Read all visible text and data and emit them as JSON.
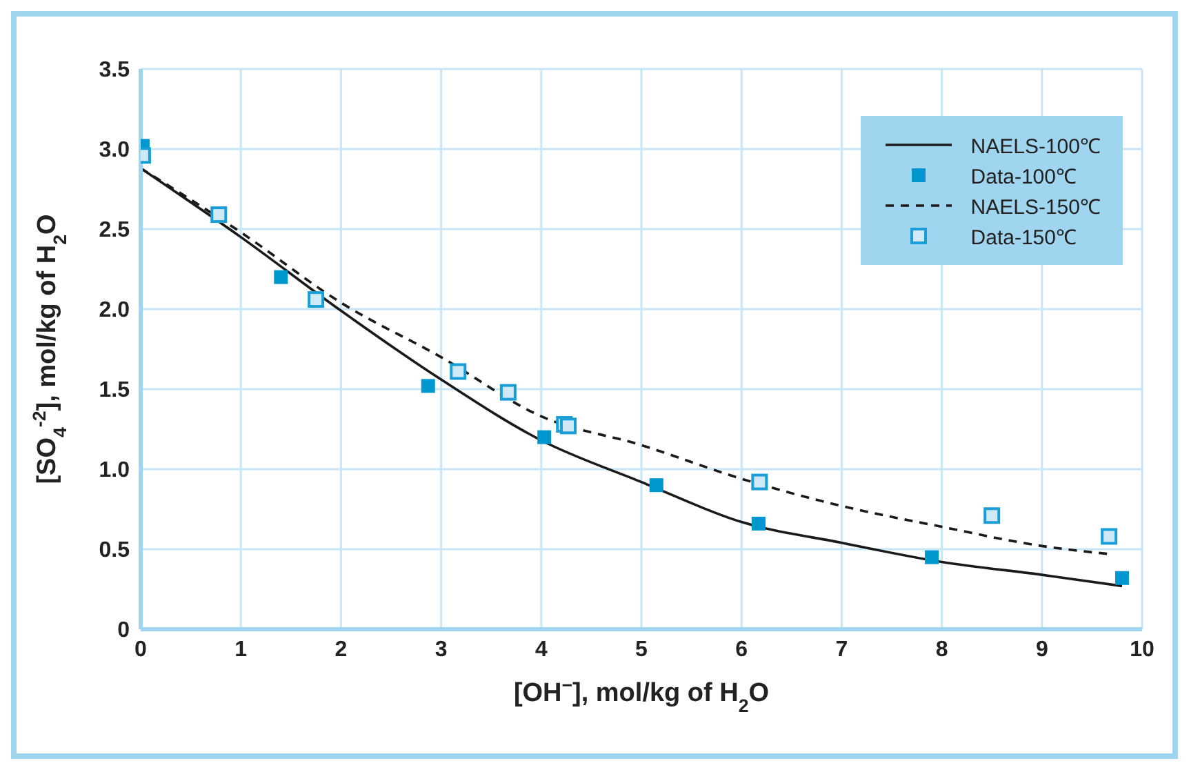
{
  "chart_data": {
    "type": "line",
    "xlabel": "[OH$^{−}$], mol/kg of H$_{2}$O",
    "ylabel": "[SO$_{4}$$^{-2}$], mol/kg of H$_{2}$O",
    "xlim": [
      0,
      10
    ],
    "xticks": [
      0,
      1,
      2,
      3,
      4,
      5,
      6,
      7,
      8,
      9,
      10
    ],
    "ylim": [
      0,
      3.5
    ],
    "yticks": [
      0,
      0.5,
      {
        "value": 1,
        "label": "1.0"
      },
      1.5,
      {
        "value": 2,
        "label": "2.0"
      },
      2.5,
      {
        "value": 3,
        "label": "3.0"
      },
      3.5
    ],
    "grid": true,
    "legend": "top right",
    "series": [
      {
        "name": "NAELS-100℃",
        "color": "#1a1a1a",
        "line_style": "solid",
        "marker": "none",
        "x": [
          0,
          1,
          2,
          3,
          4,
          5,
          6,
          7,
          8,
          9,
          9.8
        ],
        "values": [
          2.88,
          2.45,
          1.99,
          1.56,
          1.18,
          0.92,
          0.67,
          0.54,
          0.42,
          0.34,
          0.27
        ]
      },
      {
        "name": "Data-100℃",
        "type": "scatter",
        "color": "#0096d0",
        "marker": "square",
        "x": [
          0.02,
          1.4,
          2.87,
          4.03,
          5.15,
          6.17,
          7.9,
          9.8
        ],
        "values": [
          3.02,
          2.2,
          1.52,
          1.2,
          0.9,
          0.66,
          0.45,
          0.32
        ]
      },
      {
        "name": "NAELS-150℃",
        "color": "#1a1a1a",
        "line_style": "dashed",
        "marker": "none",
        "x": [
          0,
          1,
          2,
          3,
          4,
          5,
          6,
          7,
          8,
          9,
          9.67
        ],
        "values": [
          2.88,
          2.48,
          2.04,
          1.7,
          1.33,
          1.15,
          0.94,
          0.77,
          0.64,
          0.52,
          0.47
        ]
      },
      {
        "name": "Data-150℃",
        "type": "scatter",
        "color": "#1a9ed8",
        "marker": "square",
        "x": [
          0.02,
          0.78,
          1.75,
          3.17,
          3.67,
          4.23,
          4.27,
          6.18,
          8.5,
          9.67
        ],
        "values": [
          2.96,
          2.59,
          2.06,
          1.61,
          1.48,
          1.28,
          1.27,
          0.92,
          0.71,
          0.58
        ]
      }
    ]
  }
}
